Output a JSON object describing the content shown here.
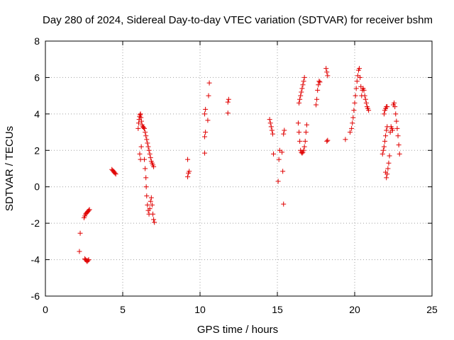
{
  "chart_data": {
    "type": "scatter",
    "title": "Day 280 of 2024, Sidereal Day-to-day VTEC variation (SDTVAR) for receiver bshm",
    "xlabel": "GPS time / hours",
    "ylabel": "SDTVAR / TECUs",
    "xlim": [
      0,
      25
    ],
    "ylim": [
      -6,
      8
    ],
    "xticks": [
      "0",
      "5",
      "10",
      "15",
      "20",
      "25"
    ],
    "yticks": [
      "-6",
      "-4",
      "-2",
      "0",
      "2",
      "4",
      "6",
      "8"
    ],
    "grid": true,
    "marker": "plus",
    "color": "#e00000",
    "series": [
      {
        "points": [
          [
            2.2,
            -3.55
          ],
          [
            2.25,
            -2.55
          ],
          [
            2.5,
            -1.7
          ],
          [
            2.55,
            -1.6
          ],
          [
            2.6,
            -1.5
          ],
          [
            2.65,
            -1.45
          ],
          [
            2.7,
            -1.4
          ],
          [
            2.75,
            -1.35
          ],
          [
            2.8,
            -1.3
          ],
          [
            2.85,
            -1.25
          ],
          [
            2.55,
            -3.95
          ],
          [
            2.6,
            -4.0
          ],
          [
            2.65,
            -4.05
          ],
          [
            2.7,
            -4.1
          ],
          [
            2.75,
            -4.05
          ],
          [
            2.8,
            -4.0
          ],
          [
            4.3,
            0.95
          ],
          [
            4.35,
            0.9
          ],
          [
            4.4,
            0.85
          ],
          [
            4.45,
            0.8
          ],
          [
            4.5,
            0.75
          ],
          [
            4.55,
            0.7
          ],
          [
            6.0,
            3.2
          ],
          [
            6.03,
            3.5
          ],
          [
            6.06,
            3.7
          ],
          [
            6.09,
            3.85
          ],
          [
            6.12,
            3.95
          ],
          [
            6.15,
            4.0
          ],
          [
            6.18,
            3.8
          ],
          [
            6.21,
            3.6
          ],
          [
            6.25,
            3.4
          ],
          [
            6.3,
            3.3
          ],
          [
            6.35,
            3.25
          ],
          [
            6.4,
            3.2
          ],
          [
            6.45,
            3.0
          ],
          [
            6.5,
            2.8
          ],
          [
            6.55,
            2.6
          ],
          [
            6.6,
            2.4
          ],
          [
            6.65,
            2.2
          ],
          [
            6.7,
            2.0
          ],
          [
            6.75,
            1.8
          ],
          [
            6.8,
            1.6
          ],
          [
            6.85,
            1.4
          ],
          [
            6.9,
            1.3
          ],
          [
            6.95,
            1.2
          ],
          [
            7.0,
            1.1
          ],
          [
            6.1,
            1.8
          ],
          [
            6.15,
            1.5
          ],
          [
            6.2,
            2.2
          ],
          [
            6.4,
            1.5
          ],
          [
            6.45,
            1.0
          ],
          [
            6.5,
            0.5
          ],
          [
            6.52,
            0.0
          ],
          [
            6.55,
            -0.5
          ],
          [
            6.6,
            -1.0
          ],
          [
            6.65,
            -1.3
          ],
          [
            6.7,
            -1.5
          ],
          [
            6.75,
            -1.2
          ],
          [
            6.8,
            -0.8
          ],
          [
            6.85,
            -0.6
          ],
          [
            6.9,
            -1.0
          ],
          [
            6.95,
            -1.5
          ],
          [
            7.0,
            -1.8
          ],
          [
            7.05,
            -1.95
          ],
          [
            9.2,
            1.5
          ],
          [
            9.2,
            0.55
          ],
          [
            9.25,
            0.75
          ],
          [
            9.3,
            0.85
          ],
          [
            10.3,
            1.85
          ],
          [
            10.3,
            2.75
          ],
          [
            10.35,
            3.0
          ],
          [
            10.3,
            4.0
          ],
          [
            10.35,
            4.25
          ],
          [
            10.5,
            3.65
          ],
          [
            10.55,
            5.0
          ],
          [
            10.6,
            5.7
          ],
          [
            11.8,
            4.05
          ],
          [
            11.8,
            4.65
          ],
          [
            11.85,
            4.8
          ],
          [
            14.5,
            3.7
          ],
          [
            14.55,
            3.5
          ],
          [
            14.6,
            3.3
          ],
          [
            14.65,
            3.1
          ],
          [
            14.7,
            2.9
          ],
          [
            14.75,
            1.8
          ],
          [
            15.05,
            0.3
          ],
          [
            15.1,
            1.5
          ],
          [
            15.15,
            2.0
          ],
          [
            15.3,
            1.9
          ],
          [
            15.35,
            0.85
          ],
          [
            15.4,
            -0.95
          ],
          [
            15.4,
            2.9
          ],
          [
            15.45,
            3.1
          ],
          [
            16.35,
            3.5
          ],
          [
            16.4,
            3.0
          ],
          [
            16.45,
            2.5
          ],
          [
            16.5,
            2.0
          ],
          [
            16.55,
            1.9
          ],
          [
            16.6,
            1.85
          ],
          [
            16.65,
            1.9
          ],
          [
            16.7,
            2.0
          ],
          [
            16.75,
            2.2
          ],
          [
            16.8,
            2.5
          ],
          [
            16.85,
            3.0
          ],
          [
            16.9,
            3.4
          ],
          [
            16.4,
            4.6
          ],
          [
            16.45,
            4.8
          ],
          [
            16.5,
            5.0
          ],
          [
            16.55,
            5.2
          ],
          [
            16.6,
            5.4
          ],
          [
            16.65,
            5.6
          ],
          [
            16.7,
            5.8
          ],
          [
            16.75,
            6.0
          ],
          [
            17.5,
            4.5
          ],
          [
            17.55,
            4.8
          ],
          [
            17.6,
            5.3
          ],
          [
            17.65,
            5.6
          ],
          [
            17.7,
            5.8
          ],
          [
            17.75,
            5.75
          ],
          [
            18.15,
            6.5
          ],
          [
            18.2,
            6.3
          ],
          [
            18.25,
            6.1
          ],
          [
            18.2,
            2.5
          ],
          [
            18.25,
            2.55
          ],
          [
            19.4,
            2.6
          ],
          [
            19.7,
            3.0
          ],
          [
            19.8,
            3.2
          ],
          [
            19.85,
            3.5
          ],
          [
            19.9,
            3.8
          ],
          [
            19.95,
            4.2
          ],
          [
            20.0,
            4.6
          ],
          [
            20.05,
            5.0
          ],
          [
            20.1,
            5.4
          ],
          [
            20.15,
            5.8
          ],
          [
            20.2,
            6.1
          ],
          [
            20.25,
            6.4
          ],
          [
            20.3,
            6.5
          ],
          [
            20.35,
            6.0
          ],
          [
            20.4,
            5.5
          ],
          [
            20.45,
            5.0
          ],
          [
            20.5,
            5.3
          ],
          [
            20.55,
            5.4
          ],
          [
            20.6,
            5.3
          ],
          [
            20.65,
            5.0
          ],
          [
            20.7,
            4.8
          ],
          [
            20.75,
            4.6
          ],
          [
            20.8,
            4.4
          ],
          [
            20.85,
            4.3
          ],
          [
            20.9,
            4.2
          ],
          [
            21.8,
            1.8
          ],
          [
            21.85,
            2.0
          ],
          [
            21.9,
            2.2
          ],
          [
            21.95,
            2.5
          ],
          [
            22.0,
            2.8
          ],
          [
            22.05,
            3.1
          ],
          [
            22.1,
            3.3
          ],
          [
            21.9,
            4.0
          ],
          [
            21.95,
            4.2
          ],
          [
            22.0,
            4.3
          ],
          [
            22.05,
            4.4
          ],
          [
            22.1,
            4.4
          ],
          [
            22.0,
            0.8
          ],
          [
            22.05,
            0.5
          ],
          [
            22.1,
            0.7
          ],
          [
            22.15,
            1.0
          ],
          [
            22.2,
            1.3
          ],
          [
            22.25,
            1.7
          ],
          [
            22.3,
            3.0
          ],
          [
            22.35,
            3.3
          ],
          [
            22.4,
            3.2
          ],
          [
            22.45,
            3.1
          ],
          [
            22.5,
            4.5
          ],
          [
            22.55,
            4.6
          ],
          [
            22.6,
            4.4
          ],
          [
            22.65,
            4.0
          ],
          [
            22.7,
            3.6
          ],
          [
            22.75,
            3.2
          ],
          [
            22.8,
            2.8
          ],
          [
            22.85,
            2.3
          ],
          [
            22.9,
            1.8
          ]
        ]
      }
    ]
  }
}
